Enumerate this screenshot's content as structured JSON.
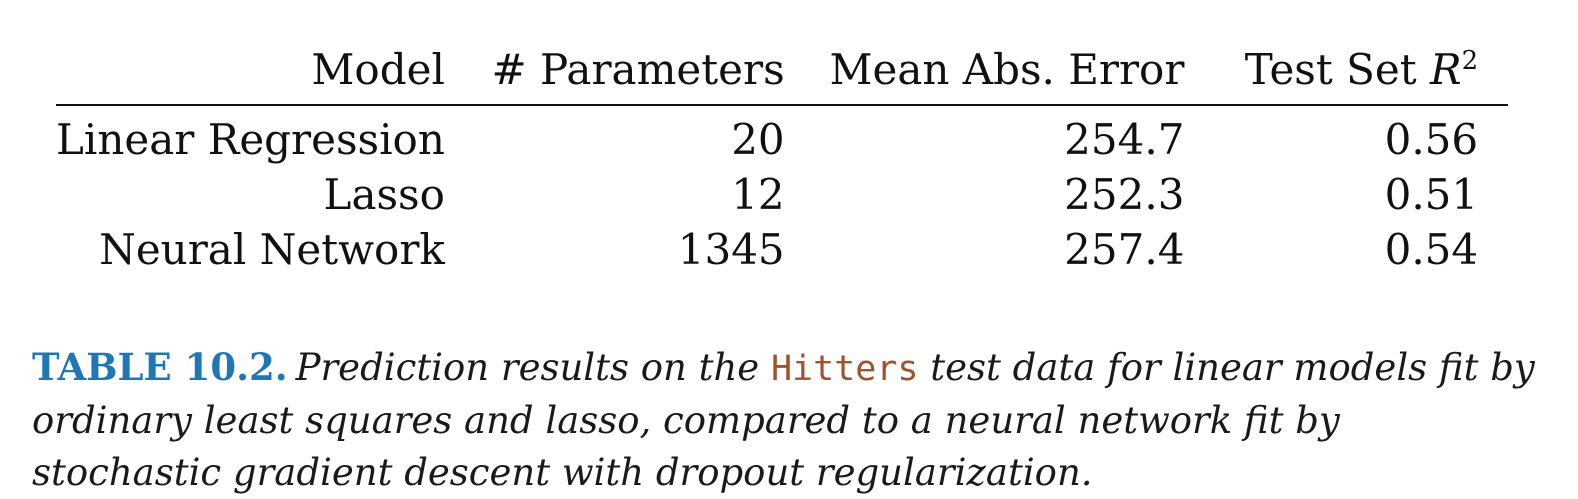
{
  "table": {
    "headers": {
      "model": "Model",
      "params": "# Parameters",
      "mae": "Mean Abs. Error",
      "r2_prefix": "Test Set ",
      "r2_var": "R",
      "r2_exp": "2"
    },
    "rows": [
      {
        "model": "Linear Regression",
        "params": "20",
        "mae": "254.7",
        "r2": "0.56"
      },
      {
        "model": "Lasso",
        "params": "12",
        "mae": "252.3",
        "r2": "0.51"
      },
      {
        "model": "Neural Network",
        "params": "1345",
        "mae": "257.4",
        "r2": "0.54"
      }
    ]
  },
  "caption": {
    "label": "TABLE 10.2.",
    "text_before": "Prediction results on the ",
    "dataset": "Hitters",
    "text_after": " test data for linear models fit by ordinary least squares and lasso, compared to a neural network fit by stochastic gradient descent with dropout regularization."
  },
  "colors": {
    "caption_label": "#1f78b4",
    "dataset_name": "#a0522d",
    "text": "#111111"
  }
}
